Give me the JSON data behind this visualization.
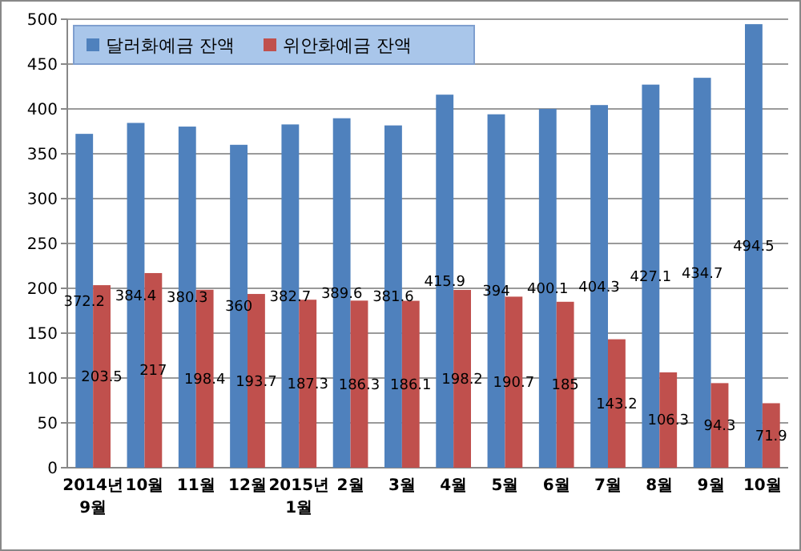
{
  "chart_data": {
    "type": "bar",
    "categories": [
      "2014년\n9월",
      "10월",
      "11월",
      "12월",
      "2015년\n1월",
      "2월",
      "3월",
      "4월",
      "5월",
      "6월",
      "7월",
      "8월",
      "9월",
      "10월"
    ],
    "series": [
      {
        "name": "달러화예금 잔액",
        "color": "#4f81bd",
        "values": [
          372.2,
          384.4,
          380.3,
          360,
          382.7,
          389.6,
          381.6,
          415.9,
          394,
          400.1,
          404.3,
          427.1,
          434.7,
          494.5
        ]
      },
      {
        "name": "위안화예금 잔액",
        "color": "#c0504d",
        "values": [
          203.5,
          217,
          198.4,
          193.7,
          187.3,
          186.3,
          186.1,
          198.2,
          190.7,
          185,
          143.2,
          106.3,
          94.3,
          71.9
        ]
      }
    ],
    "ylim": [
      0,
      500
    ],
    "yticks": [
      0,
      50,
      100,
      150,
      200,
      250,
      300,
      350,
      400,
      450,
      500
    ],
    "grid": "y",
    "legend": "top left",
    "data_labels": true
  }
}
